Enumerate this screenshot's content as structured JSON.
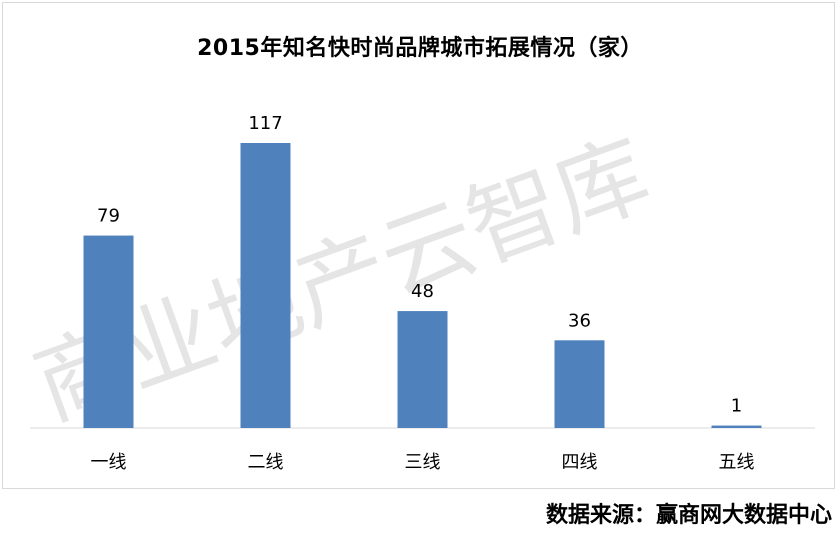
{
  "title": "2015年知名快时尚品牌城市拓展情况（家）",
  "watermark": "商业地产云智库",
  "source": "数据来源：赢商网大数据中心",
  "colors": {
    "bar": "#4f81bd",
    "axis": "#d9d9d9",
    "watermark": "#d0d0d0"
  },
  "chart_data": {
    "type": "bar",
    "title": "2015年知名快时尚品牌城市拓展情况（家）",
    "categories": [
      "一线",
      "二线",
      "三线",
      "四线",
      "五线"
    ],
    "values": [
      79,
      117,
      48,
      36,
      1
    ],
    "data_labels": [
      "79",
      "117",
      "48",
      "36",
      "1"
    ],
    "ylim": [
      0,
      117
    ],
    "grid": false,
    "legend": "none"
  }
}
